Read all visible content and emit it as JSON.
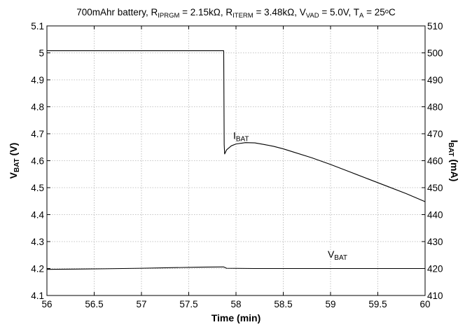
{
  "chart_data": {
    "type": "line",
    "title": {
      "parts": [
        {
          "t": "700mAhr battery,  R"
        },
        {
          "t": "IPRGM",
          "sub": true
        },
        {
          "t": " = 2.15kΩ,  R"
        },
        {
          "t": "ITERM",
          "sub": true
        },
        {
          "t": " = 3.48kΩ,  V"
        },
        {
          "t": "VAD",
          "sub": true
        },
        {
          "t": " = 5.0V,  T"
        },
        {
          "t": "A",
          "sub": true
        },
        {
          "t": " = 25"
        },
        {
          "t": "o",
          "sup": true
        },
        {
          "t": "C"
        }
      ]
    },
    "xlabel": "Time (min)",
    "ylabel_left": {
      "main": "V",
      "sub": "BAT",
      "unit": " (V)"
    },
    "ylabel_right": {
      "main": "I",
      "sub": "BAT",
      "unit": " (mA)"
    },
    "xlim": [
      56,
      60
    ],
    "ylim_left": [
      4.1,
      5.1
    ],
    "ylim_right": [
      410,
      510
    ],
    "x_ticks": [
      "56",
      "56.5",
      "57",
      "57.5",
      "58",
      "58.5",
      "59",
      "59.5",
      "60"
    ],
    "y_left_ticks": [
      "4.1",
      "4.2",
      "4.3",
      "4.4",
      "4.5",
      "4.6",
      "4.7",
      "4.8",
      "4.9",
      "5",
      "5.1"
    ],
    "y_right_ticks": [
      "410",
      "420",
      "430",
      "440",
      "450",
      "460",
      "470",
      "480",
      "490",
      "500",
      "510"
    ],
    "grid": true,
    "series": [
      {
        "name": "I_BAT",
        "axis": "right",
        "color": "#000000",
        "x": [
          56.0,
          56.5,
          57.0,
          57.5,
          57.87,
          57.875,
          57.88,
          57.9,
          57.95,
          58.0,
          58.1,
          58.2,
          58.3,
          58.4,
          58.5,
          58.6,
          58.8,
          59.0,
          59.2,
          59.4,
          59.6,
          59.8,
          60.0
        ],
        "y": [
          500.8,
          500.8,
          500.8,
          500.8,
          500.8,
          466.0,
          462.5,
          464.0,
          465.5,
          466.2,
          466.7,
          466.6,
          466.0,
          465.3,
          464.4,
          463.3,
          461.1,
          458.6,
          455.9,
          453.2,
          450.5,
          447.8,
          444.8
        ]
      },
      {
        "name": "V_BAT",
        "axis": "left",
        "color": "#000000",
        "x": [
          56.0,
          56.3,
          56.6,
          57.0,
          57.3,
          57.6,
          57.87,
          57.9,
          58.2,
          58.6,
          59.0,
          59.4,
          59.8,
          60.0
        ],
        "y": [
          4.197,
          4.198,
          4.199,
          4.201,
          4.203,
          4.205,
          4.206,
          4.201,
          4.2,
          4.2,
          4.2,
          4.2,
          4.2,
          4.2
        ]
      }
    ],
    "annotations": [
      {
        "main": "I",
        "sub": "BAT",
        "x": 57.97,
        "y_left": 4.68
      },
      {
        "main": "V",
        "sub": "BAT",
        "x": 58.97,
        "y_left": 4.24
      }
    ]
  }
}
